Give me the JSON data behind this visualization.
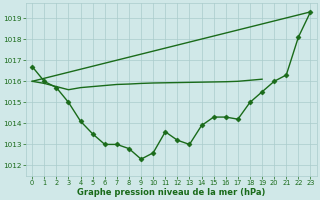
{
  "x": [
    0,
    1,
    2,
    3,
    4,
    5,
    6,
    7,
    8,
    9,
    10,
    11,
    12,
    13,
    14,
    15,
    16,
    17,
    18,
    19,
    20,
    21,
    22,
    23
  ],
  "line1": [
    1016.7,
    1016.0,
    1015.7,
    1015.0,
    1014.1,
    1013.5,
    1013.0,
    1013.0,
    1012.8,
    1012.3,
    1012.6,
    1013.6,
    1013.2,
    1013.0,
    1013.9,
    1014.3,
    1014.3,
    1014.2,
    1015.0,
    1015.5,
    1016.0,
    1016.3,
    1018.1,
    1019.3
  ],
  "line2": [
    1016.0,
    1015.9,
    1015.75,
    1015.6,
    1015.7,
    1015.75,
    1015.8,
    1015.85,
    1015.87,
    1015.9,
    1015.92,
    1015.93,
    1015.94,
    1015.95,
    1015.96,
    1015.97,
    1015.98,
    1016.0,
    1016.05,
    1016.1,
    null,
    null,
    null,
    null
  ],
  "line3": [
    1016.0,
    null,
    null,
    null,
    null,
    null,
    null,
    null,
    null,
    null,
    null,
    null,
    null,
    null,
    null,
    null,
    null,
    null,
    null,
    null,
    null,
    null,
    null,
    1019.3
  ],
  "ylim": [
    1011.5,
    1019.7
  ],
  "yticks": [
    1012,
    1013,
    1014,
    1015,
    1016,
    1017,
    1018,
    1019
  ],
  "xticks": [
    0,
    1,
    2,
    3,
    4,
    5,
    6,
    7,
    8,
    9,
    10,
    11,
    12,
    13,
    14,
    15,
    16,
    17,
    18,
    19,
    20,
    21,
    22,
    23
  ],
  "line_color": "#1a6b1a",
  "bg_color": "#d0e8e8",
  "grid_color": "#aacccc",
  "xlabel": "Graphe pression niveau de la mer (hPa)",
  "marker": "D",
  "markersize": 2.5,
  "linewidth": 1.0
}
